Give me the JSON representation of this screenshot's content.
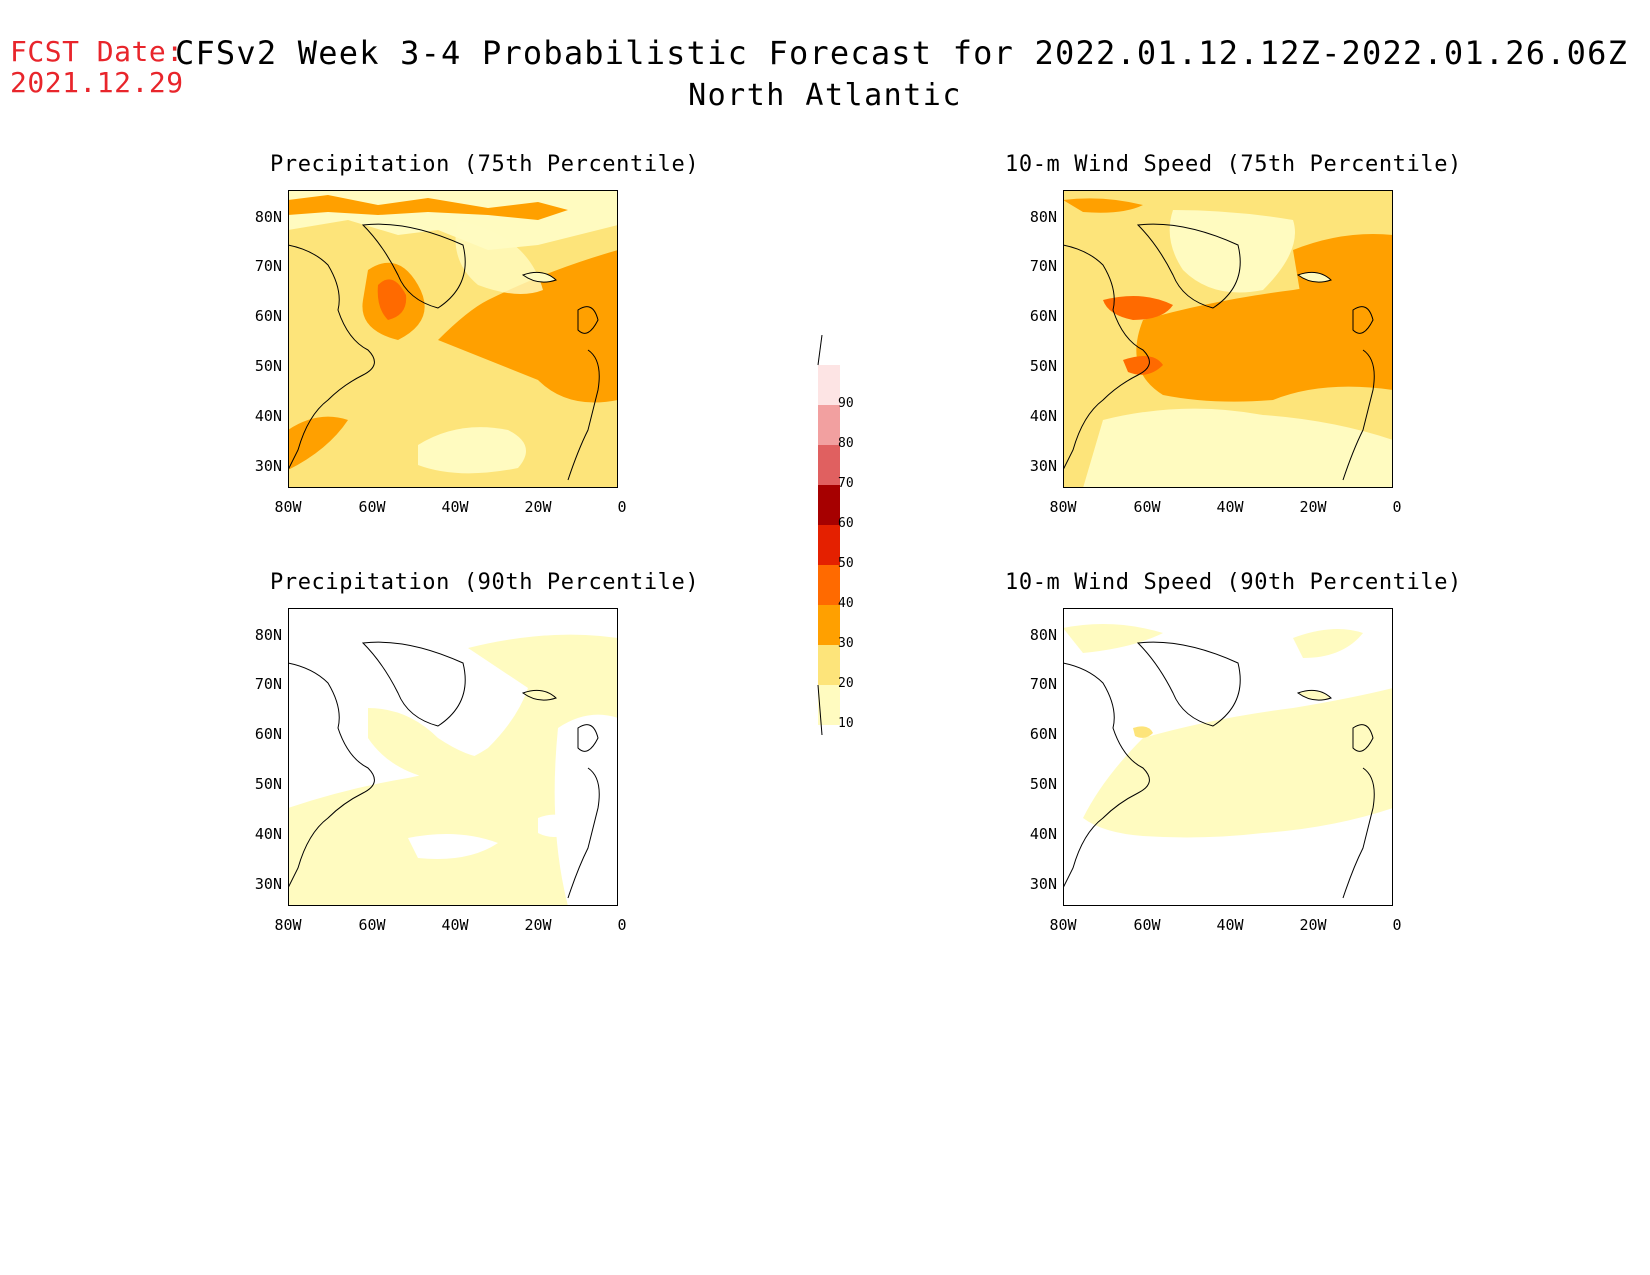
{
  "header": {
    "fcst_label": "FCST Date:",
    "fcst_date": "2021.12.29",
    "title": "CFSv2 Week 3-4 Probabilistic Forecast for 2022.01.12.12Z-2022.01.26.06Z",
    "region": "North Atlantic"
  },
  "panels": [
    {
      "title": "Precipitation (75th Percentile)"
    },
    {
      "title": "10-m Wind Speed (75th Percentile)"
    },
    {
      "title": "Precipitation (90th Percentile)"
    },
    {
      "title": "10-m Wind Speed (90th Percentile)"
    }
  ],
  "axes": {
    "lat_labels": [
      "80N",
      "70N",
      "60N",
      "50N",
      "40N",
      "30N"
    ],
    "lon_labels": [
      "80W",
      "60W",
      "40W",
      "20W",
      "0"
    ]
  },
  "colorbar": {
    "levels": [
      "10",
      "20",
      "30",
      "40",
      "50",
      "60",
      "70",
      "80",
      "90"
    ],
    "colors": [
      "#fffbc0",
      "#fde47a",
      "#ffa000",
      "#ff6a00",
      "#e42000",
      "#a60000",
      "#e06060",
      "#f2a0a0",
      "#fde4e4"
    ]
  }
}
